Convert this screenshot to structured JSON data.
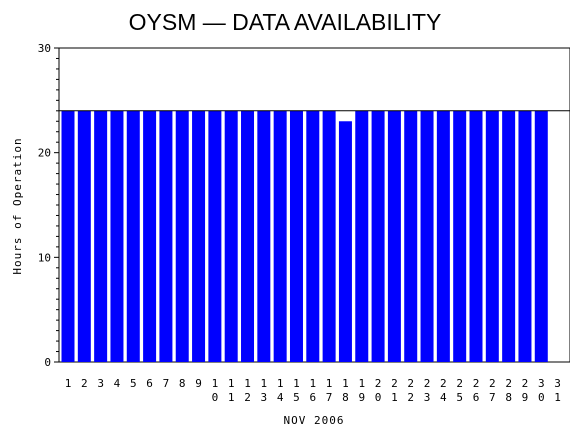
{
  "chart_data": {
    "type": "bar",
    "title": "OYSM — DATA AVAILABILITY",
    "xlabel": "NOV 2006",
    "ylabel": "Hours of Operation",
    "ylim": [
      0,
      30
    ],
    "yticks": [
      0,
      10,
      20,
      30
    ],
    "reference_line": 24,
    "bar_color": "#0000ff",
    "categories": [
      "1",
      "2",
      "3",
      "4",
      "5",
      "6",
      "7",
      "8",
      "9",
      "10",
      "11",
      "12",
      "13",
      "14",
      "15",
      "16",
      "17",
      "18",
      "19",
      "20",
      "21",
      "22",
      "23",
      "24",
      "25",
      "26",
      "27",
      "28",
      "29",
      "30",
      "31"
    ],
    "values": [
      24,
      24,
      24,
      24,
      24,
      24,
      24,
      24,
      24,
      24,
      24,
      24,
      24,
      24,
      24,
      24,
      24,
      23,
      24,
      24,
      24,
      24,
      24,
      24,
      24,
      24,
      24,
      24,
      24,
      24,
      0
    ]
  }
}
